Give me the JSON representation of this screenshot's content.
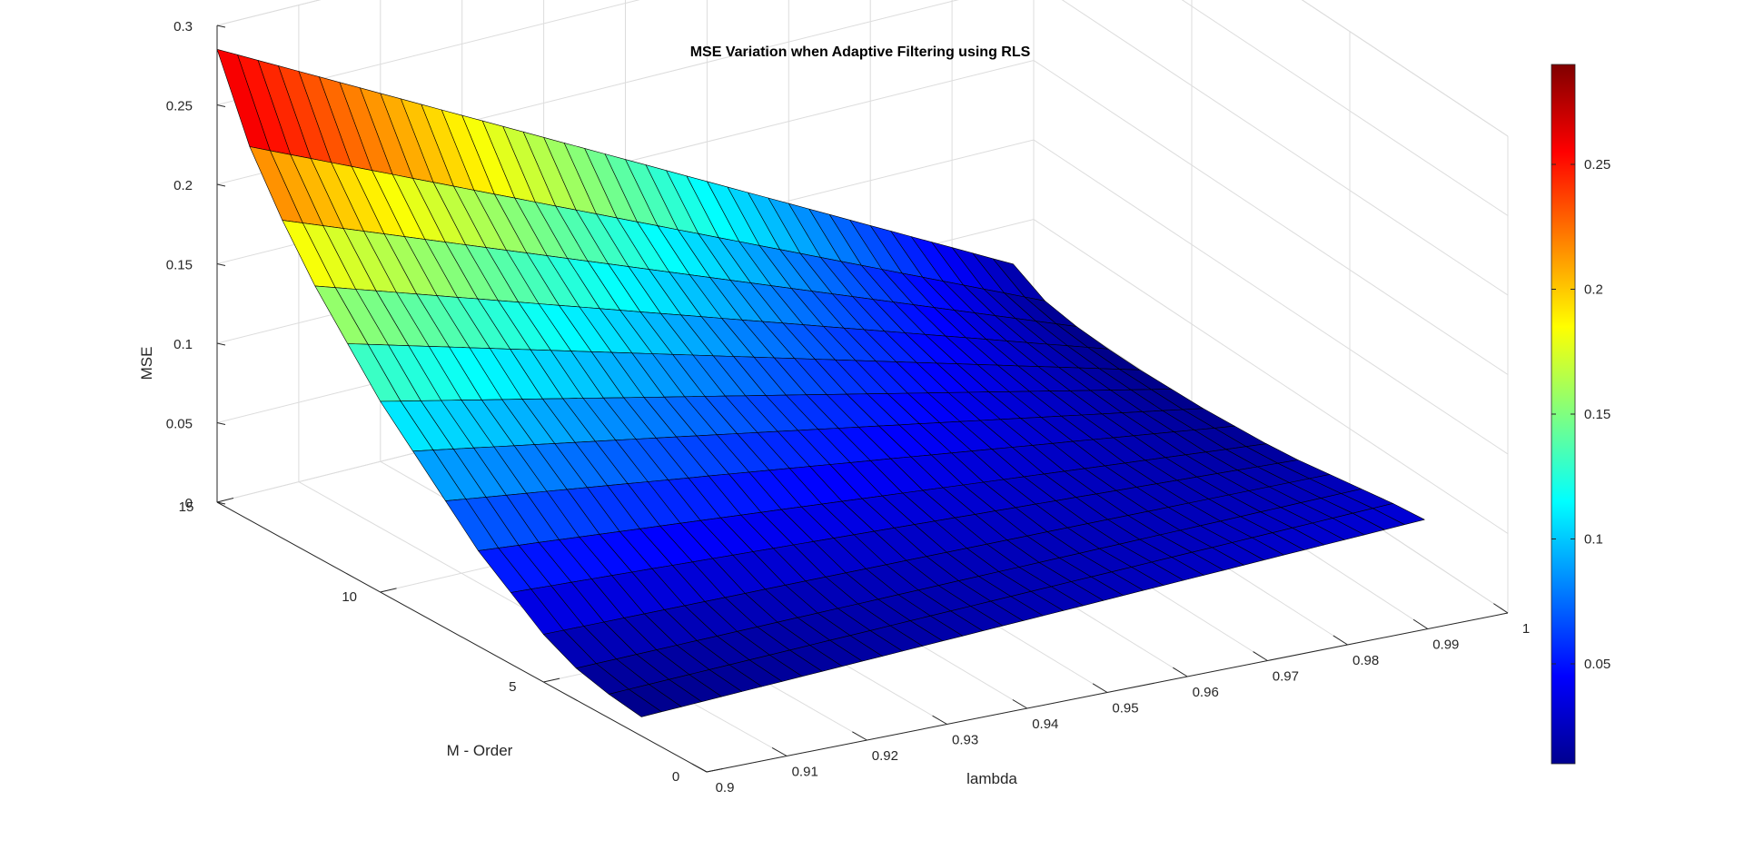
{
  "chart_data": {
    "type": "surface",
    "title": "MSE Variation when Adaptive Filtering using RLS",
    "xlabel": "lambda",
    "ylabel": "M - Order",
    "zlabel": "MSE",
    "xlim": [
      0.9,
      1.0
    ],
    "ylim": [
      0,
      15
    ],
    "zlim": [
      0,
      0.3
    ],
    "x_ticks": [
      "0.9",
      "0.91",
      "0.92",
      "0.93",
      "0.94",
      "0.95",
      "0.96",
      "0.97",
      "0.98",
      "0.99",
      "1"
    ],
    "y_ticks": [
      "0",
      "5",
      "10",
      "15"
    ],
    "z_ticks": [
      "0",
      "0.05",
      "0.1",
      "0.15",
      "0.2",
      "0.25",
      "0.3"
    ],
    "lambda_start": 0.9,
    "lambda_step": 0.0025,
    "lambda_count": 40,
    "M_orders": [
      2,
      3,
      4,
      5,
      6,
      7,
      8,
      9,
      10,
      11,
      12,
      13,
      14,
      15
    ],
    "mse_at_lambda_0_90": [
      0.012,
      0.015,
      0.02,
      0.03,
      0.045,
      0.06,
      0.08,
      0.1,
      0.12,
      0.145,
      0.17,
      0.2,
      0.235,
      0.285
    ],
    "mse_at_lambda_0_9975": [
      0.035,
      0.032,
      0.028,
      0.024,
      0.02,
      0.017,
      0.015,
      0.013,
      0.012,
      0.011,
      0.011,
      0.012,
      0.015,
      0.025
    ],
    "grid": true,
    "colormap": "jet",
    "colorbar": {
      "location": "right",
      "ticks": [
        "0.05",
        "0.1",
        "0.15",
        "0.2",
        "0.25"
      ],
      "range": [
        0.01,
        0.29
      ]
    },
    "edge_color": "#000000"
  }
}
